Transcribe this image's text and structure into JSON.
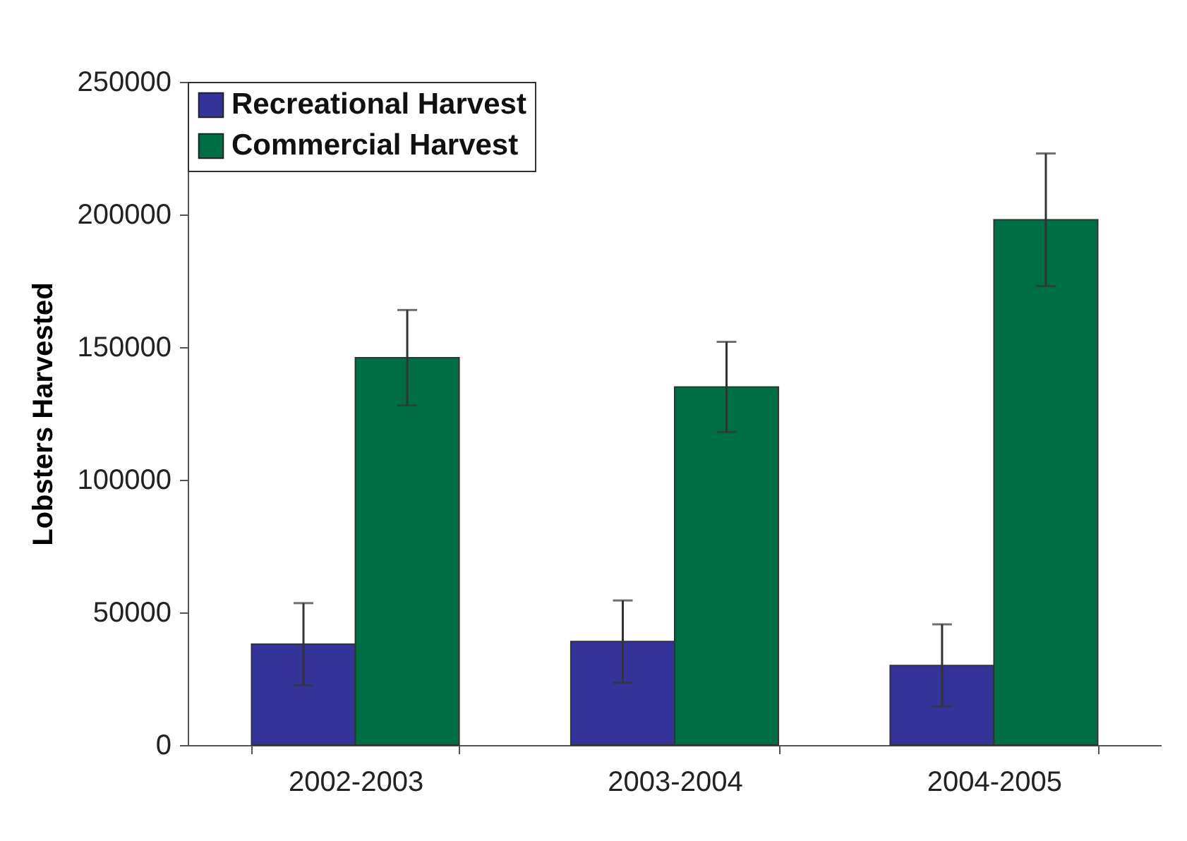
{
  "chart_data": {
    "type": "bar",
    "ylabel": "Lobsters Harvested",
    "categories": [
      "2002-2003",
      "2003-2004",
      "2004-2005"
    ],
    "series": [
      {
        "name": "Recreational Harvest",
        "color": "#333399",
        "values": [
          38000,
          39000,
          30000
        ],
        "errors": [
          15500,
          15500,
          15500
        ]
      },
      {
        "name": "Commercial Harvest",
        "color": "#006e45",
        "values": [
          146000,
          135000,
          198000
        ],
        "errors": [
          18000,
          17000,
          25000
        ]
      }
    ],
    "ylim": [
      0,
      250000
    ],
    "yticks": [
      0,
      50000,
      100000,
      150000,
      200000,
      250000
    ],
    "grid": false,
    "legend": "top left"
  }
}
